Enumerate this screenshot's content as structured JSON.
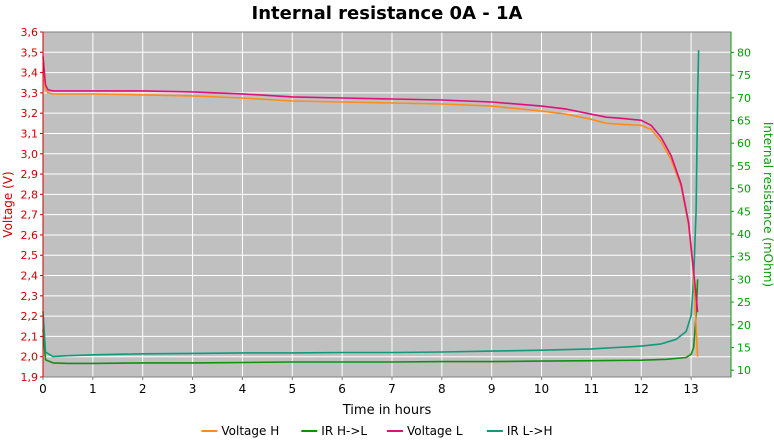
{
  "chart_data": {
    "type": "line",
    "title": "Internal resistance  0A - 1A",
    "xlabel": "Time in hours",
    "ylabel_left": "Voltage (V)",
    "ylabel_right": "Internal resistance (mOhm)",
    "xlim": [
      0,
      13.8
    ],
    "ylim_left": [
      1.9,
      3.6
    ],
    "ylim_right": [
      8.5,
      84.5
    ],
    "x_ticks": [
      "0",
      "1",
      "2",
      "3",
      "4",
      "5",
      "6",
      "7",
      "8",
      "9",
      "10",
      "11",
      "12",
      "13"
    ],
    "left_ticks": [
      "1,9",
      "2,0",
      "2,1",
      "2,2",
      "2,3",
      "2,4",
      "2,5",
      "2,6",
      "2,7",
      "2,8",
      "2,9",
      "3,0",
      "3,1",
      "3,2",
      "3,3",
      "3,4",
      "3,5",
      "3,6"
    ],
    "right_ticks": [
      "10",
      "15",
      "20",
      "25",
      "30",
      "35",
      "40",
      "45",
      "50",
      "55",
      "60",
      "65",
      "70",
      "75",
      "80"
    ],
    "grid": true,
    "legend_position": "bottom",
    "colors": {
      "plot_bg": "#c0c0c0",
      "grid": "#ffffff",
      "voltage_h": "#ff8c1a",
      "ir_hl": "#109010",
      "voltage_l": "#e0107a",
      "ir_lh": "#109a7a",
      "left_axis": "#d00000",
      "right_axis": "#00a000"
    },
    "series": [
      {
        "name": "Voltage H",
        "axis": "left",
        "x": [
          0,
          0.05,
          0.1,
          0.2,
          0.5,
          1,
          2,
          3,
          4,
          5,
          6,
          7,
          8,
          9,
          10,
          10.5,
          11,
          11.3,
          11.6,
          12,
          12.2,
          12.4,
          12.6,
          12.8,
          12.95,
          13.05,
          13.1,
          13.13
        ],
        "y": [
          3.41,
          3.32,
          3.3,
          3.295,
          3.295,
          3.295,
          3.29,
          3.285,
          3.275,
          3.26,
          3.255,
          3.25,
          3.245,
          3.235,
          3.21,
          3.195,
          3.17,
          3.15,
          3.145,
          3.14,
          3.12,
          3.06,
          2.97,
          2.84,
          2.65,
          2.4,
          2.15,
          2.0
        ]
      },
      {
        "name": "IR H->L",
        "axis": "right",
        "x": [
          0,
          0.05,
          0.2,
          0.5,
          1,
          2,
          3,
          4,
          5,
          6,
          7,
          8,
          9,
          10,
          11,
          12,
          12.5,
          12.9,
          13.0,
          13.05,
          13.1,
          13.13
        ],
        "y": [
          19.0,
          12.3,
          11.6,
          11.5,
          11.5,
          11.6,
          11.6,
          11.7,
          11.8,
          11.8,
          11.8,
          11.9,
          11.9,
          12.0,
          12.1,
          12.2,
          12.4,
          12.8,
          13.5,
          15.0,
          22.0,
          30.0
        ]
      },
      {
        "name": "Voltage L",
        "axis": "left",
        "x": [
          0,
          0.05,
          0.1,
          0.2,
          0.5,
          1,
          2,
          3,
          4,
          5,
          6,
          7,
          8,
          9,
          10,
          10.5,
          11,
          11.3,
          11.6,
          12,
          12.2,
          12.4,
          12.6,
          12.8,
          12.95,
          13.05,
          13.1,
          13.13
        ],
        "y": [
          3.48,
          3.34,
          3.315,
          3.31,
          3.31,
          3.31,
          3.31,
          3.305,
          3.295,
          3.28,
          3.275,
          3.27,
          3.265,
          3.255,
          3.235,
          3.22,
          3.195,
          3.18,
          3.175,
          3.165,
          3.14,
          3.08,
          2.99,
          2.85,
          2.66,
          2.42,
          2.3,
          2.22
        ]
      },
      {
        "name": "IR L->H",
        "axis": "right",
        "x": [
          0,
          0.05,
          0.2,
          0.5,
          1,
          2,
          3,
          4,
          5,
          6,
          7,
          8,
          9,
          10,
          11,
          11.5,
          12,
          12.4,
          12.7,
          12.9,
          13.0,
          13.05,
          13.1,
          13.13,
          13.15
        ],
        "y": [
          23.0,
          14.0,
          13.0,
          13.2,
          13.4,
          13.6,
          13.7,
          13.8,
          13.8,
          13.9,
          13.9,
          14.0,
          14.2,
          14.4,
          14.7,
          15.0,
          15.3,
          15.8,
          16.8,
          18.5,
          22.0,
          30.0,
          45.0,
          70.0,
          80.5
        ]
      }
    ]
  }
}
